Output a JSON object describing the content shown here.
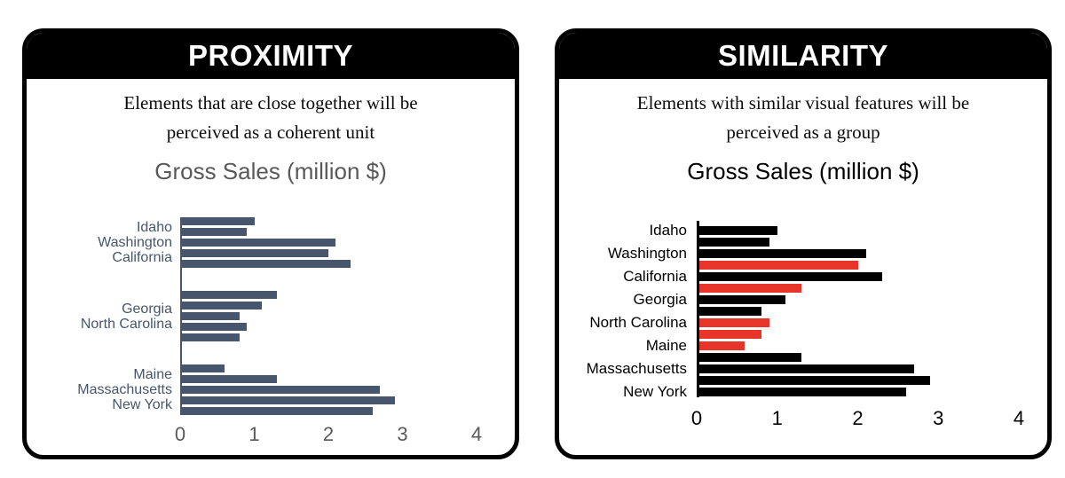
{
  "colors": {
    "slate": "#47566C",
    "red": "#E8352A",
    "black": "#000000",
    "gray_text": "#595959"
  },
  "panels": [
    {
      "header": "PROXIMITY",
      "description_lines": [
        "Elements that are close together will be",
        "perceived as a coherent unit"
      ],
      "chart_title": "Gross Sales (million $)"
    },
    {
      "header": "SIMILARITY",
      "description_lines": [
        "Elements with similar visual features will be",
        "perceived as a group"
      ],
      "chart_title": "Gross Sales (million $)"
    }
  ],
  "chart_data": [
    {
      "type": "bar",
      "orientation": "horizontal",
      "title": "Gross Sales (million $)",
      "xlabel": "",
      "ylabel": "",
      "xlim": [
        0,
        4
      ],
      "xticks": [
        0,
        1,
        2,
        3,
        4
      ],
      "grid": false,
      "legend": false,
      "bar_color_name": "slate",
      "groups": [
        {
          "labels": [
            "Idaho",
            "Washington",
            "California"
          ],
          "values": [
            1.0,
            0.9,
            2.1,
            2.0,
            2.3
          ]
        },
        {
          "labels": [
            "Georgia",
            "North Carolina"
          ],
          "values": [
            1.3,
            1.1,
            0.8,
            0.9,
            0.8
          ]
        },
        {
          "labels": [
            "Maine",
            "Massachusetts",
            "New York"
          ],
          "values": [
            0.6,
            1.3,
            2.7,
            2.9,
            2.6
          ]
        }
      ]
    },
    {
      "type": "bar",
      "orientation": "horizontal",
      "title": "Gross Sales (million $)",
      "xlabel": "",
      "ylabel": "",
      "xlim": [
        0,
        4
      ],
      "xticks": [
        0,
        1,
        2,
        3,
        4
      ],
      "grid": false,
      "legend": false,
      "labels": [
        "Idaho",
        "Washington",
        "California",
        "Georgia",
        "North Carolina",
        "Maine",
        "Massachusetts",
        "New York"
      ],
      "label_every_n_bars": 2,
      "bars": [
        {
          "value": 1.0,
          "color": "black"
        },
        {
          "value": 0.9,
          "color": "black"
        },
        {
          "value": 2.1,
          "color": "black"
        },
        {
          "value": 2.0,
          "color": "red"
        },
        {
          "value": 2.3,
          "color": "black"
        },
        {
          "value": 1.3,
          "color": "red"
        },
        {
          "value": 1.1,
          "color": "black"
        },
        {
          "value": 0.8,
          "color": "black"
        },
        {
          "value": 0.9,
          "color": "red"
        },
        {
          "value": 0.8,
          "color": "red"
        },
        {
          "value": 0.6,
          "color": "red"
        },
        {
          "value": 1.3,
          "color": "black"
        },
        {
          "value": 2.7,
          "color": "black"
        },
        {
          "value": 2.9,
          "color": "black"
        },
        {
          "value": 2.6,
          "color": "black"
        }
      ]
    }
  ]
}
